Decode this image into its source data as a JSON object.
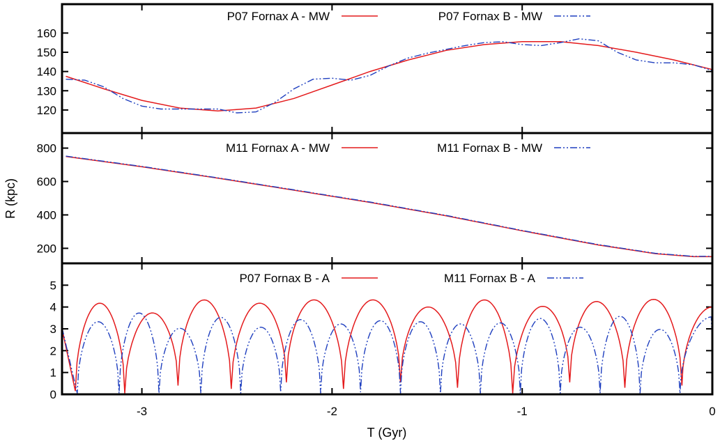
{
  "chart_data": [
    {
      "type": "line",
      "panel": "top",
      "ylim": [
        108,
        175
      ],
      "yticks": [
        120,
        130,
        140,
        150,
        160
      ],
      "legend": [
        {
          "label": "P07 Fornax A - MW",
          "color": "#e41a1c",
          "style": "solid"
        },
        {
          "label": "P07 Fornax B - MW",
          "color": "#1f3fbf",
          "style": "dashdot"
        }
      ],
      "series": [
        {
          "name": "P07 Fornax A - MW",
          "x": [
            -3.4,
            -3.2,
            -3.0,
            -2.8,
            -2.6,
            -2.4,
            -2.2,
            -2.0,
            -1.8,
            -1.6,
            -1.4,
            -1.2,
            -1.0,
            -0.8,
            -0.6,
            -0.4,
            -0.2,
            0.0
          ],
          "y": [
            137.5,
            131,
            125,
            121,
            119.5,
            121,
            126,
            133,
            140,
            146,
            151,
            154,
            155.5,
            155.5,
            153.5,
            150,
            146,
            141
          ]
        },
        {
          "name": "P07 Fornax B - MW",
          "x": [
            -3.4,
            -3.3,
            -3.2,
            -3.1,
            -3.0,
            -2.9,
            -2.8,
            -2.7,
            -2.6,
            -2.5,
            -2.4,
            -2.3,
            -2.2,
            -2.1,
            -2.0,
            -1.9,
            -1.8,
            -1.7,
            -1.6,
            -1.5,
            -1.4,
            -1.3,
            -1.2,
            -1.1,
            -1.0,
            -0.9,
            -0.8,
            -0.7,
            -0.6,
            -0.5,
            -0.4,
            -0.3,
            -0.2,
            -0.1,
            0.0
          ],
          "y": [
            136,
            135.5,
            132,
            126,
            122,
            120.5,
            120.5,
            120.5,
            120.5,
            118.5,
            119,
            124,
            131,
            136,
            136.5,
            135.5,
            138,
            143,
            147,
            149.5,
            151.5,
            153.5,
            155,
            155.5,
            154,
            153.5,
            155,
            157,
            156,
            150,
            146,
            144.5,
            144.5,
            143.5,
            140.5
          ]
        }
      ]
    },
    {
      "type": "line",
      "panel": "middle",
      "ylabel": "R (kpc)",
      "ylim": [
        110,
        890
      ],
      "yticks": [
        200,
        400,
        600,
        800
      ],
      "legend": [
        {
          "label": "M11 Fornax A - MW",
          "color": "#e41a1c",
          "style": "solid"
        },
        {
          "label": "M11 Fornax B - MW",
          "color": "#1f3fbf",
          "style": "dashdot"
        }
      ],
      "series": [
        {
          "name": "M11 Fornax A - MW",
          "x": [
            -3.4,
            -3.0,
            -2.6,
            -2.2,
            -1.8,
            -1.4,
            -1.0,
            -0.6,
            -0.3,
            -0.1,
            0.0
          ],
          "y": [
            750,
            688,
            620,
            548,
            475,
            395,
            305,
            220,
            168,
            150,
            150
          ]
        },
        {
          "name": "M11 Fornax B - MW",
          "x": [
            -3.4,
            -3.0,
            -2.6,
            -2.2,
            -1.8,
            -1.4,
            -1.0,
            -0.6,
            -0.3,
            -0.1,
            0.0
          ],
          "y": [
            752,
            690,
            622,
            550,
            477,
            397,
            307,
            222,
            170,
            152,
            152
          ]
        }
      ]
    },
    {
      "type": "line",
      "panel": "bottom",
      "xlabel": "T (Gyr)",
      "xlim": [
        -3.42,
        0
      ],
      "xticks": [
        -3,
        -2,
        -1,
        0
      ],
      "ylim": [
        0,
        6
      ],
      "yticks": [
        0,
        1,
        2,
        3,
        4,
        5
      ],
      "legend": [
        {
          "label": "P07 Fornax B - A",
          "color": "#e41a1c",
          "style": "solid"
        },
        {
          "label": "M11 Fornax B - A",
          "color": "#1f3fbf",
          "style": "dashdot"
        }
      ],
      "series": [
        {
          "name": "P07 Fornax B - A",
          "x": [
            -3.42,
            -3.35,
            -3.09,
            -2.81,
            -2.53,
            -2.24,
            -1.94,
            -1.64,
            -1.34,
            -1.05,
            -0.75,
            -0.46,
            -0.16,
            0.0
          ],
          "y": [
            3.0,
            0.15,
            0.05,
            0.4,
            0.25,
            0.55,
            0.25,
            0.55,
            0.3,
            0.05,
            0.55,
            0.3,
            0.4,
            3.9
          ],
          "peaks": [
            4.15,
            3.7,
            4.2,
            4.05,
            4.2,
            4.2,
            3.85,
            4.3,
            4.0,
            4.1,
            4.2,
            4.0
          ]
        },
        {
          "name": "M11 Fornax B - A",
          "x": [
            -3.42,
            -3.34,
            -3.12,
            -2.91,
            -2.69,
            -2.48,
            -2.27,
            -2.06,
            -1.85,
            -1.64,
            -1.43,
            -1.22,
            -1.01,
            -0.8,
            -0.59,
            -0.38,
            -0.17,
            0.0
          ],
          "y": [
            3.05,
            0.05,
            0.05,
            0.05,
            0.05,
            0.05,
            0.1,
            0.05,
            0.1,
            0.05,
            0.05,
            0.05,
            0.05,
            0.05,
            0.05,
            0.05,
            0.05,
            2.05
          ],
          "peaks": [
            3.3,
            3.7,
            3.0,
            3.5,
            3.05,
            3.4,
            3.2,
            3.35,
            3.3,
            3.2,
            3.25,
            3.45,
            3.05,
            3.55,
            2.95,
            3.55,
            3.05
          ]
        }
      ]
    }
  ]
}
